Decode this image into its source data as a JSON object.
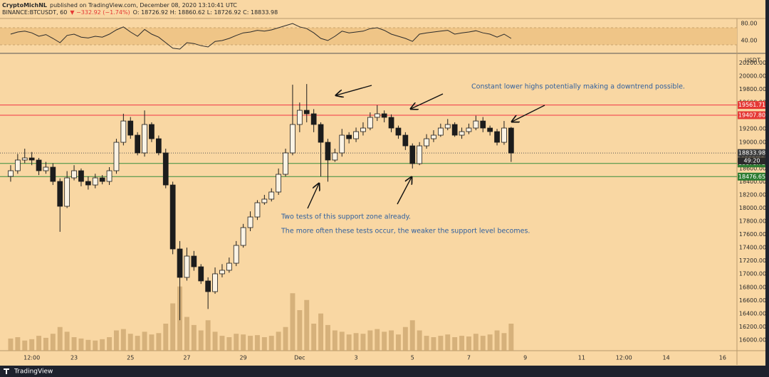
{
  "header": {
    "author": "CryptoMichNL",
    "published": "published on TradingView.com, December 08, 2020 13:10:41 UTC",
    "symbol": "BINANCE:BTCUSDT, 60",
    "change": "▼ −332.92 (−1.74%)",
    "ohlc": "O: 18726.92 H: 18860.62 L: 18726.92 C: 18833.98"
  },
  "footer": {
    "brand": "TradingView"
  },
  "chart_data": [
    {
      "type": "candlestick",
      "axis_label": "USDT",
      "categories": [
        null,
        null,
        null,
        "12:00",
        null,
        null,
        null,
        null,
        null,
        "23",
        null,
        null,
        null,
        null,
        null,
        null,
        null,
        "25",
        null,
        null,
        null,
        null,
        null,
        null,
        null,
        "27",
        null,
        null,
        null,
        null,
        null,
        null,
        null,
        "29",
        null,
        null,
        null,
        null,
        null,
        null,
        null,
        "Dec",
        null,
        null,
        null,
        null,
        null,
        null,
        null,
        "3",
        null,
        null,
        null,
        null,
        null,
        null,
        null,
        "5",
        null,
        null,
        null,
        null,
        null,
        null,
        null,
        "7",
        null,
        null,
        null,
        null,
        null,
        null,
        null,
        "9",
        null,
        null,
        null,
        null,
        null,
        null,
        null,
        "11",
        null,
        null,
        null,
        null,
        null,
        "12:00",
        null,
        null,
        null,
        null,
        null,
        "14",
        null,
        null,
        null,
        null,
        null,
        null,
        null,
        "16",
        null
      ],
      "open": [
        18480,
        18566,
        18728,
        18760,
        18728,
        18566,
        18620,
        18404,
        18027,
        18458,
        18566,
        18404,
        18350,
        18458,
        18404,
        18566,
        18997,
        19320,
        19105,
        18836,
        19267,
        19051,
        18836,
        18350,
        17380,
        16949,
        17272,
        17110,
        16895,
        16733,
        17003,
        17057,
        17164,
        17434,
        17704,
        17865,
        18081,
        18135,
        18243,
        18512,
        18836,
        19267,
        19482,
        19429,
        19267,
        18997,
        18728,
        18836,
        19105,
        19051,
        19159,
        19213,
        19375,
        19429,
        19375,
        19213,
        19105,
        18943,
        18674,
        18943,
        19051,
        19105,
        19213,
        19267,
        19105,
        19159,
        19213,
        19320,
        19213,
        19159,
        18997,
        19213,
        null,
        null,
        null,
        null,
        null,
        null,
        null,
        null,
        null,
        null,
        null,
        null,
        null,
        null,
        null,
        null,
        null,
        null,
        null,
        null,
        null,
        null,
        null,
        null,
        null,
        null,
        null,
        null,
        null,
        null,
        null
      ],
      "high": [
        18650,
        18820,
        18900,
        18850,
        18760,
        18700,
        18680,
        18450,
        18560,
        18650,
        18600,
        18480,
        18520,
        18500,
        18620,
        19050,
        19430,
        19380,
        19150,
        19480,
        19300,
        19100,
        18900,
        18400,
        17500,
        17400,
        17350,
        17150,
        16950,
        17100,
        17150,
        17250,
        17500,
        17760,
        17950,
        18120,
        18200,
        18300,
        18600,
        18900,
        19870,
        19600,
        19880,
        19500,
        19300,
        19050,
        18900,
        19200,
        19150,
        19220,
        19300,
        19450,
        19560,
        19480,
        19420,
        19250,
        19150,
        18980,
        19000,
        19120,
        19180,
        19280,
        19350,
        19300,
        19220,
        19280,
        19400,
        19380,
        19250,
        19200,
        19320,
        19230,
        null,
        null,
        null,
        null,
        null,
        null,
        null,
        null,
        null,
        null,
        null,
        null,
        null,
        null,
        null,
        null,
        null,
        null,
        null,
        null,
        null,
        null,
        null,
        null,
        null,
        null,
        null,
        null,
        null,
        null,
        null
      ],
      "low": [
        18400,
        18520,
        18680,
        18650,
        18500,
        18520,
        18350,
        17640,
        18000,
        18420,
        18330,
        18280,
        18300,
        18360,
        18350,
        18520,
        18950,
        19050,
        18800,
        18780,
        19000,
        18800,
        18300,
        17300,
        16300,
        16900,
        17050,
        16850,
        16470,
        16700,
        16950,
        17020,
        17120,
        17400,
        17650,
        17820,
        18050,
        18100,
        18200,
        18480,
        18800,
        19150,
        19300,
        19150,
        18480,
        18400,
        18700,
        18780,
        18980,
        19000,
        19100,
        19180,
        19320,
        19300,
        19150,
        19050,
        18880,
        18600,
        18650,
        18900,
        19000,
        19080,
        19180,
        19080,
        19050,
        19120,
        19180,
        19150,
        19100,
        18950,
        18960,
        18700,
        null,
        null,
        null,
        null,
        null,
        null,
        null,
        null,
        null,
        null,
        null,
        null,
        null,
        null,
        null,
        null,
        null,
        null,
        null,
        null,
        null,
        null,
        null,
        null,
        null,
        null,
        null,
        null,
        null,
        null,
        null
      ],
      "close": [
        18566,
        18728,
        18760,
        18728,
        18566,
        18620,
        18404,
        18027,
        18458,
        18566,
        18404,
        18350,
        18458,
        18404,
        18566,
        18997,
        19320,
        19105,
        18836,
        19267,
        19051,
        18836,
        18350,
        17380,
        16949,
        17272,
        17110,
        16895,
        16733,
        17003,
        17057,
        17164,
        17434,
        17704,
        17865,
        18081,
        18135,
        18243,
        18512,
        18836,
        19267,
        19482,
        19429,
        19267,
        18997,
        18728,
        18836,
        19105,
        19051,
        19159,
        19213,
        19375,
        19429,
        19375,
        19213,
        19105,
        18943,
        18674,
        18943,
        19051,
        19105,
        19213,
        19267,
        19105,
        19159,
        19213,
        19320,
        19213,
        19159,
        18997,
        19213,
        18833.98,
        null,
        null,
        null,
        null,
        null,
        null,
        null,
        null,
        null,
        null,
        null,
        null,
        null,
        null,
        null,
        null,
        null,
        null,
        null,
        null,
        null,
        null,
        null,
        null,
        null,
        null,
        null,
        null,
        null,
        null,
        null
      ],
      "up_color": "#fbf3e4",
      "down_color": "#1c1c1c",
      "volume": {
        "color": "#c9a46e",
        "ylim": [
          0,
          100
        ],
        "values": [
          18,
          20,
          15,
          17,
          22,
          19,
          25,
          35,
          28,
          20,
          18,
          16,
          15,
          17,
          20,
          30,
          32,
          25,
          22,
          28,
          24,
          26,
          40,
          70,
          95,
          50,
          38,
          30,
          45,
          28,
          22,
          20,
          25,
          24,
          22,
          23,
          20,
          22,
          28,
          35,
          85,
          60,
          75,
          40,
          55,
          38,
          30,
          28,
          24,
          26,
          25,
          30,
          32,
          28,
          30,
          24,
          35,
          45,
          30,
          22,
          20,
          22,
          24,
          20,
          22,
          21,
          25,
          22,
          24,
          30,
          26,
          40,
          null,
          null,
          null,
          null,
          null,
          null,
          null,
          null,
          null,
          null,
          null,
          null,
          null,
          null,
          null,
          null,
          null,
          null,
          null,
          null,
          null,
          null,
          null,
          null,
          null,
          null,
          null,
          null,
          null,
          null,
          null
        ]
      },
      "ylim": [
        15838,
        20313
      ],
      "yticks": [
        {
          "value": 16000,
          "label": "16000.00"
        },
        {
          "value": 16200,
          "label": "16200.00"
        },
        {
          "value": 16400,
          "label": "16400.00"
        },
        {
          "value": 16600,
          "label": "16600.00"
        },
        {
          "value": 16800,
          "label": "16800.00"
        },
        {
          "value": 17000,
          "label": "17000.00"
        },
        {
          "value": 17200,
          "label": "17200.00"
        },
        {
          "value": 17400,
          "label": "17400.00"
        },
        {
          "value": 17600,
          "label": "17600.00"
        },
        {
          "value": 17800,
          "label": "17800.00"
        },
        {
          "value": 18000,
          "label": "18000.00"
        },
        {
          "value": 18200,
          "label": "18200.00"
        },
        {
          "value": 18400,
          "label": "18400.00"
        },
        {
          "value": 18600,
          "label": "18600.00"
        },
        {
          "value": 18800,
          "label": "18800.00"
        },
        {
          "value": 19000,
          "label": "19000.00"
        },
        {
          "value": 19200,
          "label": "19200.00"
        },
        {
          "value": 19400,
          "label": "19400.00"
        },
        {
          "value": 19600,
          "label": "19600.00"
        },
        {
          "value": 19800,
          "label": "19800.00"
        },
        {
          "value": 20000,
          "label": "20000.00"
        },
        {
          "value": 20200,
          "label": "20200.00"
        }
      ],
      "grid": false,
      "levels": [
        {
          "value": 19561.71,
          "color": "#f23645"
        },
        {
          "value": 19407.8,
          "label": "19407.80",
          "color": "#f23645"
        },
        {
          "value": 18676.73,
          "color": "#388e3c"
        },
        {
          "value": 18476.65,
          "color": "#388e3c"
        }
      ],
      "current": {
        "value": 18833.98,
        "countdown": "49:20"
      },
      "annotations": [
        "Constant lower highs potentially making a downtrend possible.",
        "Two tests of this support zone already.",
        "The more often these tests occur, the weaker the support level becomes."
      ]
    },
    {
      "type": "line",
      "color": "#2b2b2b",
      "values": [
        55,
        60,
        62,
        58,
        50,
        54,
        45,
        35,
        52,
        55,
        48,
        46,
        50,
        48,
        55,
        65,
        72,
        60,
        50,
        66,
        55,
        48,
        35,
        22,
        20,
        35,
        33,
        28,
        25,
        38,
        40,
        45,
        52,
        58,
        60,
        64,
        62,
        65,
        70,
        75,
        80,
        72,
        68,
        58,
        45,
        40,
        50,
        62,
        58,
        60,
        62,
        68,
        70,
        64,
        55,
        50,
        45,
        38,
        55,
        58,
        60,
        62,
        64,
        55,
        58,
        60,
        63,
        58,
        55,
        48,
        55,
        45
      ],
      "ylim": [
        13.3,
        88.3
      ],
      "yticks": [
        {
          "value": 40,
          "label": "40.00"
        },
        {
          "value": 80,
          "label": "80.00"
        }
      ],
      "band": [
        30,
        70
      ]
    }
  ]
}
